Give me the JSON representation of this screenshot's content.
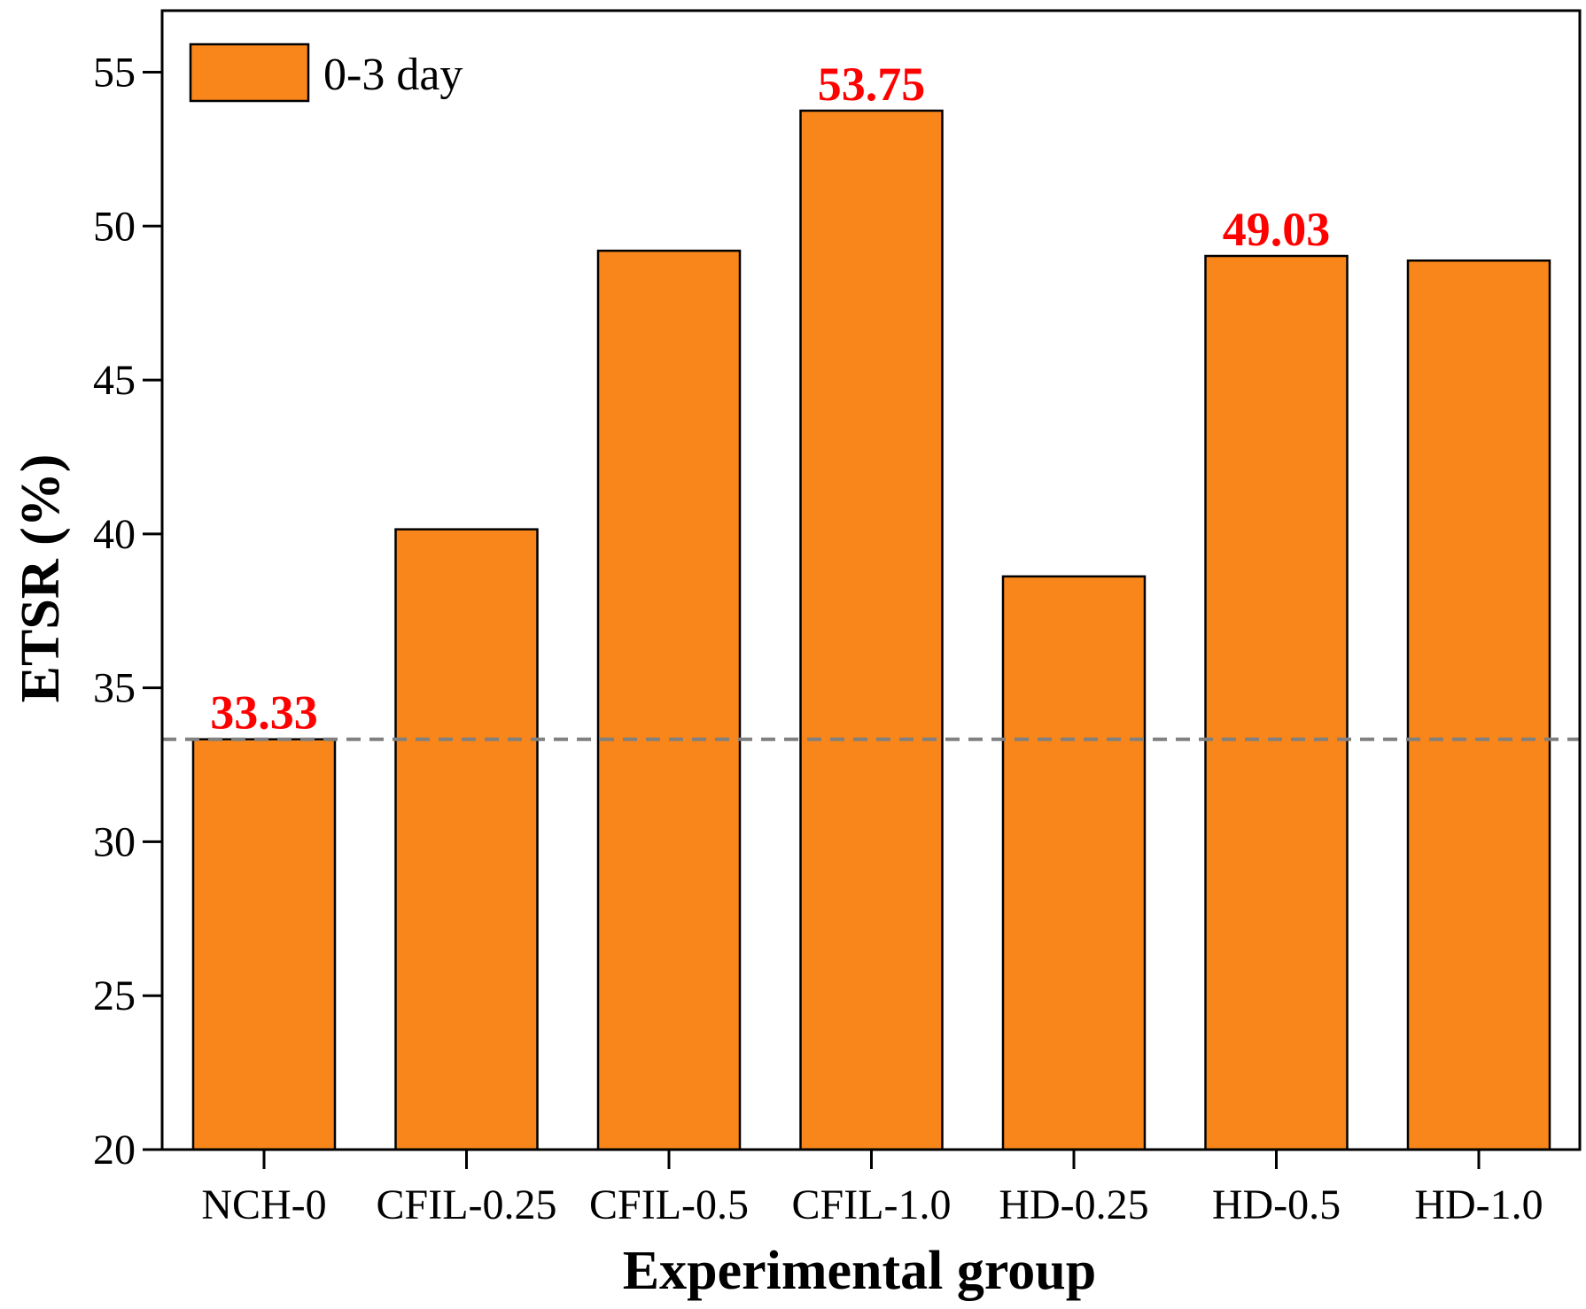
{
  "chart_data": {
    "type": "bar",
    "title": "",
    "xlabel": "Experimental group",
    "ylabel": "ETSR (%)",
    "categories": [
      "NCH-0",
      "CFIL-0.25",
      "CFIL-0.5",
      "CFIL-1.0",
      "HD-0.25",
      "HD-0.5",
      "HD-1.0"
    ],
    "series": [
      {
        "name": "0-3 day",
        "values": [
          33.33,
          40.15,
          49.2,
          53.75,
          38.62,
          49.03,
          48.88
        ]
      }
    ],
    "ylim": [
      20,
      57
    ],
    "yticks": [
      20,
      25,
      30,
      35,
      40,
      45,
      50,
      55
    ],
    "reference_line": {
      "value": 33.33,
      "style": "dashed"
    },
    "data_labels": [
      {
        "category_index": 0,
        "text": "33.33"
      },
      {
        "category_index": 3,
        "text": "53.75"
      },
      {
        "category_index": 5,
        "text": "49.03"
      }
    ],
    "legend": {
      "position": "top-left",
      "entries": [
        "0-3 day"
      ]
    },
    "colors": {
      "bar": "#f8861a",
      "bar_edge": "#000000",
      "label": "#ff0000",
      "reference_line": "#808080"
    },
    "grid": false
  }
}
